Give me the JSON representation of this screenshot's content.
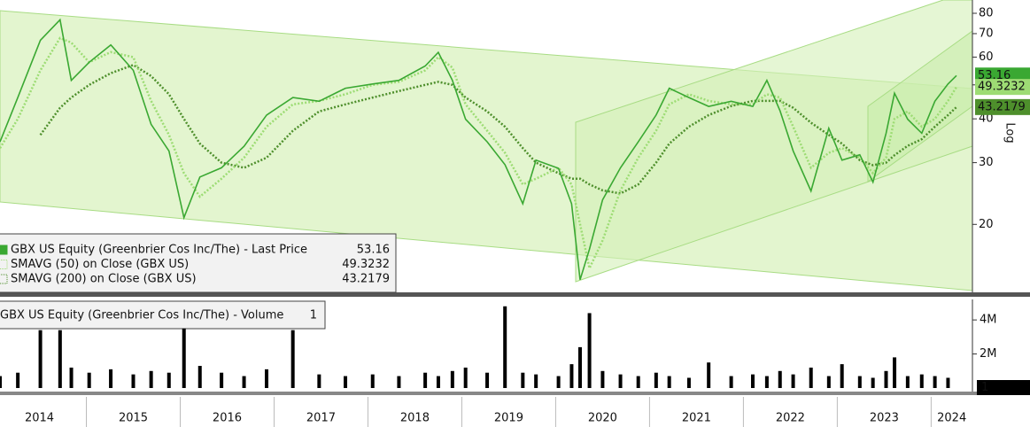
{
  "chart_data": [
    {
      "type": "line",
      "log_scale": true,
      "x": [
        2014.08,
        2014.27,
        2014.51,
        2014.72,
        2014.84,
        2015.03,
        2015.26,
        2015.5,
        2015.69,
        2015.88,
        2016.04,
        2016.21,
        2016.44,
        2016.68,
        2016.92,
        2017.2,
        2017.48,
        2017.76,
        2018.05,
        2018.33,
        2018.61,
        2018.75,
        2018.9,
        2019.04,
        2019.27,
        2019.46,
        2019.65,
        2019.79,
        2020.03,
        2020.17,
        2020.26,
        2020.36,
        2020.5,
        2020.69,
        2020.88,
        2021.07,
        2021.21,
        2021.42,
        2021.63,
        2021.87,
        2022.1,
        2022.25,
        2022.39,
        2022.53,
        2022.72,
        2022.91,
        2023.05,
        2023.24,
        2023.38,
        2023.52,
        2023.61,
        2023.75,
        2023.9,
        2024.04,
        2024.18,
        2024.27
      ],
      "xlim": [
        2014.08,
        2024.44
      ],
      "xticks": [
        2014,
        2015,
        2016,
        2017,
        2018,
        2019,
        2020,
        2021,
        2022,
        2023,
        2024
      ],
      "ylim": [
        12.8,
        87.3
      ],
      "yticks": [
        20,
        30,
        40,
        50,
        60,
        70,
        80
      ],
      "y_axis_label": "Log",
      "series": [
        {
          "name": "GBX US Equity (Greenbrier Cos Inc/The) - Last Price",
          "last_value": 53.16,
          "color": "#3aa832",
          "values": [
            34.4,
            46,
            67,
            76.7,
            51.5,
            58,
            65,
            55,
            38.6,
            32.4,
            20.9,
            27.3,
            29,
            33.4,
            41,
            46,
            44.9,
            48.9,
            50.3,
            51.5,
            56.6,
            61.9,
            51.5,
            39.9,
            34.4,
            29.6,
            22.9,
            30.5,
            28.9,
            22.9,
            13.9,
            17,
            23.5,
            29,
            34.4,
            41,
            48.9,
            46,
            43.4,
            44.9,
            43.4,
            51.5,
            42.2,
            32.4,
            24.9,
            37.6,
            30.5,
            31.6,
            26.4,
            36.4,
            47.3,
            39.9,
            36.4,
            44.9,
            50.3,
            53.16
          ]
        },
        {
          "name": "SMAVG (50)  on Close (GBX US)",
          "last_value": 49.3232,
          "color": "#9ddc74",
          "values": [
            33,
            40,
            55,
            68,
            66,
            58,
            62,
            60,
            45,
            36,
            28,
            24,
            27,
            31,
            38,
            44,
            45,
            47,
            50,
            51,
            55,
            60,
            56,
            44,
            37,
            32,
            26,
            27,
            29,
            26,
            20,
            15,
            18,
            25,
            31,
            37,
            44,
            47,
            45,
            44,
            44,
            47,
            46,
            38,
            29,
            32,
            33,
            31,
            28,
            31,
            40,
            42,
            38,
            40,
            45,
            49.3232
          ]
        },
        {
          "name": "SMAVG (200)  on Close (GBX US)",
          "last_value": 43.2179,
          "color": "#4e8f2c",
          "values": [
            null,
            null,
            36,
            43,
            46,
            50,
            54,
            57,
            53,
            47,
            40,
            34,
            30,
            29,
            31,
            37,
            42,
            44,
            46,
            48,
            50,
            51,
            50,
            46,
            42,
            38,
            33,
            30,
            28,
            27,
            27,
            26,
            25,
            24.5,
            26,
            30,
            34,
            38,
            41,
            43.5,
            45,
            45,
            45,
            43,
            39,
            36,
            34,
            30.5,
            29.5,
            30,
            31.5,
            33.5,
            35,
            38,
            41,
            43.2179
          ]
        }
      ]
    },
    {
      "type": "bar",
      "name": "GBX US Equity (Greenbrier Cos Inc/The) - Volume",
      "last_value": 1,
      "color": "#000000",
      "x": [
        2014.08,
        2014.27,
        2014.51,
        2014.72,
        2014.84,
        2015.03,
        2015.26,
        2015.5,
        2015.69,
        2015.88,
        2016.04,
        2016.21,
        2016.44,
        2016.68,
        2016.92,
        2017.2,
        2017.48,
        2017.76,
        2018.05,
        2018.33,
        2018.61,
        2018.75,
        2018.9,
        2019.04,
        2019.27,
        2019.46,
        2019.65,
        2019.79,
        2020.03,
        2020.17,
        2020.26,
        2020.36,
        2020.5,
        2020.69,
        2020.88,
        2021.07,
        2021.21,
        2021.42,
        2021.63,
        2021.87,
        2022.1,
        2022.25,
        2022.39,
        2022.53,
        2022.72,
        2022.91,
        2023.05,
        2023.24,
        2023.38,
        2023.52,
        2023.61,
        2023.75,
        2023.9,
        2024.04,
        2024.18,
        2024.27
      ],
      "values": [
        700000,
        900000,
        3400000,
        3400000,
        1200000,
        900000,
        1100000,
        800000,
        1000000,
        900000,
        3500000,
        1300000,
        900000,
        700000,
        1100000,
        3400000,
        800000,
        700000,
        800000,
        700000,
        900000,
        700000,
        1000000,
        1200000,
        900000,
        4800000,
        900000,
        800000,
        700000,
        1400000,
        2400000,
        4400000,
        1000000,
        800000,
        700000,
        900000,
        700000,
        600000,
        1500000,
        700000,
        800000,
        700000,
        1000000,
        800000,
        1200000,
        700000,
        1400000,
        700000,
        600000,
        1000000,
        1800000,
        700000,
        800000,
        700000,
        600000,
        1
      ],
      "xlim": [
        2014.08,
        2024.44
      ],
      "ylim": [
        0,
        5100000
      ],
      "yticks": [
        {
          "value": 2000000,
          "label": "2M"
        },
        {
          "value": 4000000,
          "label": "4M"
        }
      ]
    }
  ]
}
